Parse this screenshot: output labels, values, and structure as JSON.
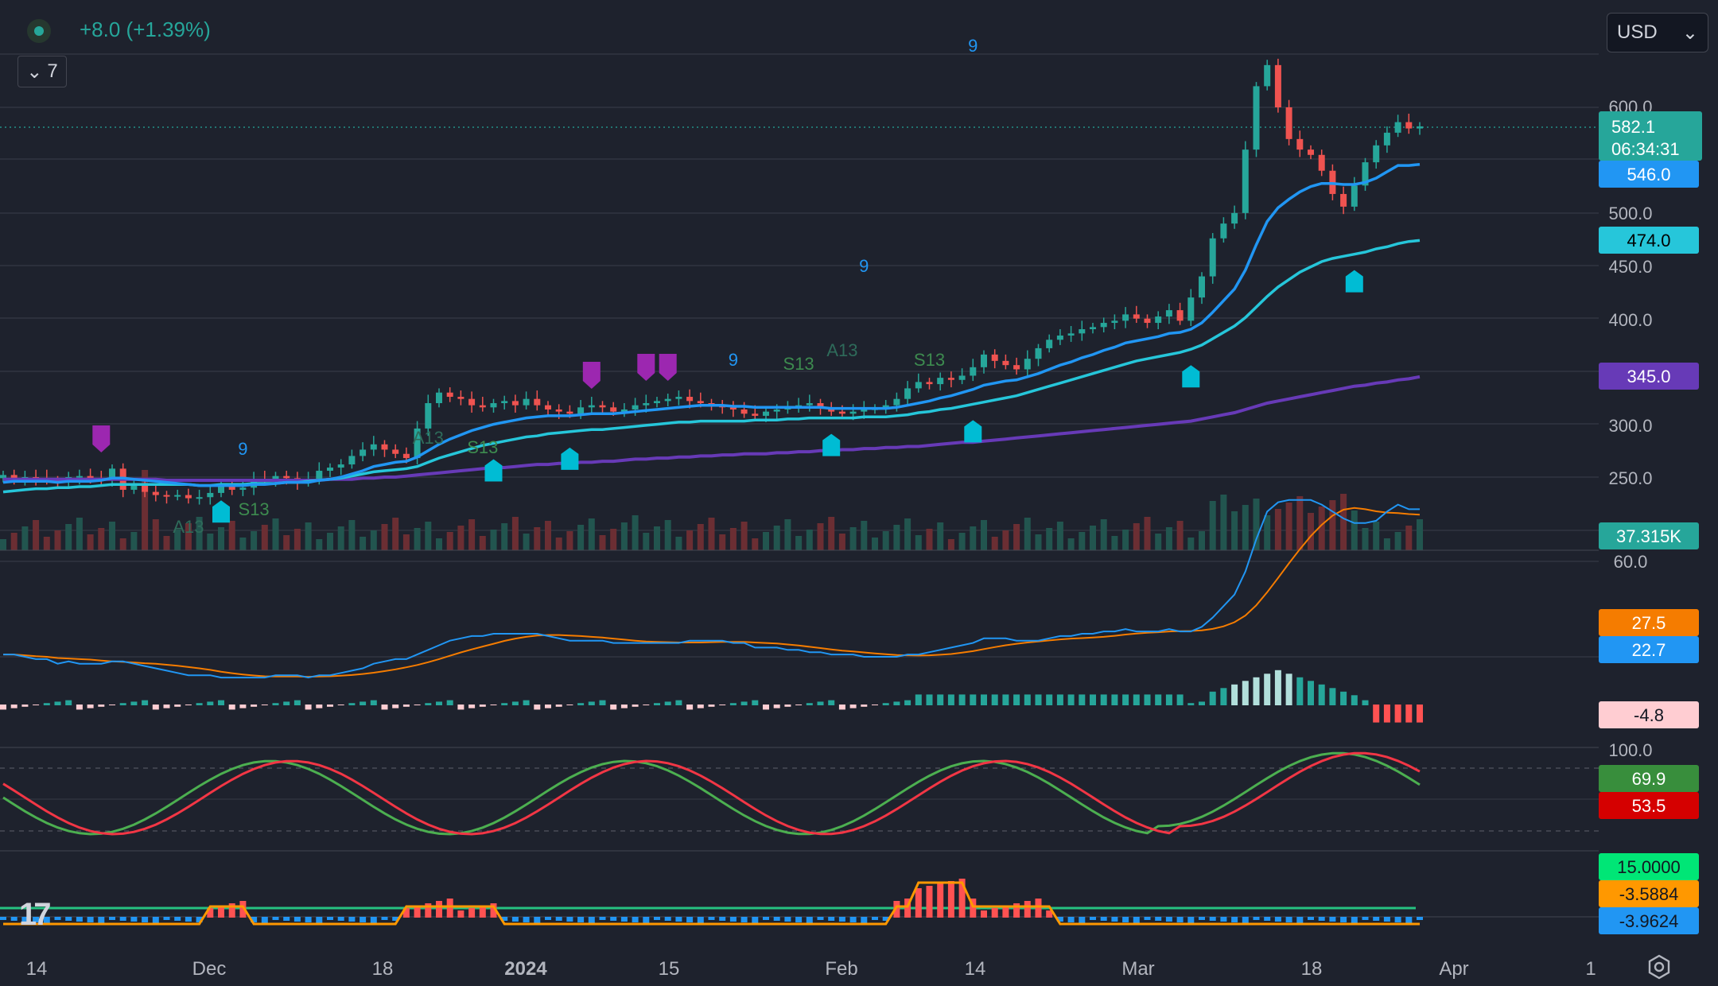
{
  "header": {
    "change": "+8.0 (+1.39%)",
    "legend_toggle": "7",
    "currency": "USD"
  },
  "colors": {
    "background": "#1e222d",
    "up": "#26a69a",
    "down": "#ef5350",
    "ema_fast": "#2196f3",
    "ema_mid": "#26c6da",
    "ema_slow": "#673ab7",
    "macd_signal": "#f57c00",
    "stoch_k": "#4caf50",
    "stoch_d": "#f23645",
    "signal_marker": "#00bcd4",
    "sell_marker": "#9c27b0"
  },
  "chart_data": {
    "type": "candlestick",
    "x_ticks": [
      "14",
      "Dec",
      "18",
      "2024",
      "15",
      "Feb",
      "14",
      "Mar",
      "18",
      "Apr",
      "1"
    ],
    "price_axis_ticks": [
      "600.0",
      "500.0",
      "450.0",
      "400.0",
      "300.0",
      "250.0"
    ],
    "last_price": "582.1",
    "countdown": "06:34:31",
    "candles_close": [
      252,
      248,
      250,
      249,
      247,
      246,
      250,
      251,
      248,
      247,
      258,
      238,
      242,
      236,
      233,
      232,
      233,
      230,
      231,
      235,
      242,
      238,
      240,
      248,
      246,
      251,
      249,
      245,
      248,
      256,
      259,
      262,
      270,
      276,
      281,
      276,
      272,
      268,
      296,
      320,
      330,
      326,
      324,
      318,
      316,
      320,
      322,
      318,
      324,
      318,
      314,
      312,
      310,
      316,
      318,
      316,
      312,
      314,
      318,
      320,
      322,
      324,
      326,
      322,
      320,
      318,
      316,
      314,
      310,
      308,
      312,
      314,
      316,
      318,
      320,
      316,
      312,
      310,
      312,
      314,
      315,
      318,
      324,
      334,
      340,
      338,
      344,
      342,
      346,
      354,
      366,
      360,
      356,
      352,
      362,
      372,
      380,
      384,
      386,
      390,
      392,
      396,
      398,
      404,
      400,
      396,
      402,
      408,
      398,
      420,
      440,
      476,
      490,
      500,
      560,
      620,
      640,
      600,
      570,
      560,
      555,
      540,
      518,
      506,
      526,
      548,
      564,
      576,
      586,
      580,
      582
    ],
    "ema_fast": [
      245,
      246,
      246,
      246,
      246,
      245,
      246,
      246,
      246,
      247,
      249,
      249,
      248,
      247,
      246,
      245,
      244,
      243,
      242,
      242,
      242,
      242,
      242,
      243,
      243,
      244,
      245,
      245,
      245,
      247,
      248,
      250,
      253,
      256,
      260,
      262,
      264,
      265,
      269,
      275,
      281,
      286,
      290,
      294,
      297,
      300,
      302,
      304,
      306,
      307,
      308,
      308,
      308,
      309,
      310,
      310,
      310,
      311,
      312,
      313,
      314,
      315,
      316,
      317,
      318,
      318,
      318,
      317,
      317,
      316,
      316,
      316,
      316,
      316,
      316,
      316,
      315,
      315,
      315,
      315,
      315,
      315,
      316,
      318,
      320,
      322,
      325,
      327,
      330,
      333,
      337,
      339,
      341,
      342,
      345,
      348,
      352,
      356,
      359,
      363,
      366,
      370,
      373,
      377,
      379,
      381,
      383,
      386,
      387,
      390,
      396,
      406,
      417,
      428,
      446,
      470,
      492,
      505,
      513,
      520,
      525,
      528,
      528,
      527,
      527,
      529,
      533,
      539,
      545,
      545,
      546
    ],
    "ema_mid": [
      236,
      237,
      238,
      239,
      239,
      240,
      240,
      241,
      241,
      242,
      243,
      243,
      243,
      243,
      243,
      243,
      243,
      243,
      242,
      242,
      243,
      243,
      243,
      244,
      244,
      244,
      245,
      245,
      246,
      247,
      248,
      249,
      251,
      253,
      255,
      256,
      257,
      258,
      260,
      264,
      268,
      271,
      274,
      277,
      280,
      282,
      284,
      286,
      288,
      289,
      291,
      292,
      293,
      294,
      295,
      295,
      296,
      297,
      298,
      299,
      300,
      301,
      302,
      302,
      303,
      303,
      303,
      303,
      303,
      304,
      304,
      304,
      305,
      305,
      306,
      306,
      306,
      306,
      306,
      307,
      307,
      307,
      308,
      309,
      311,
      312,
      314,
      315,
      317,
      319,
      321,
      323,
      325,
      327,
      330,
      333,
      336,
      339,
      342,
      345,
      348,
      351,
      354,
      357,
      360,
      362,
      364,
      366,
      368,
      371,
      375,
      381,
      387,
      393,
      401,
      411,
      421,
      430,
      437,
      444,
      449,
      454,
      457,
      459,
      461,
      463,
      466,
      468,
      471,
      473,
      474
    ],
    "ema_slow": [
      248,
      248,
      248,
      248,
      248,
      248,
      248,
      248,
      248,
      248,
      248,
      248,
      248,
      248,
      248,
      247,
      247,
      247,
      247,
      247,
      247,
      247,
      247,
      247,
      247,
      247,
      247,
      247,
      247,
      247,
      248,
      248,
      248,
      249,
      249,
      250,
      250,
      251,
      252,
      253,
      254,
      255,
      256,
      257,
      258,
      259,
      259,
      260,
      261,
      262,
      262,
      263,
      263,
      264,
      264,
      265,
      265,
      266,
      267,
      267,
      268,
      268,
      269,
      269,
      270,
      270,
      271,
      271,
      272,
      272,
      272,
      273,
      273,
      274,
      274,
      275,
      275,
      276,
      276,
      277,
      277,
      278,
      278,
      279,
      279,
      280,
      281,
      282,
      283,
      283,
      284,
      285,
      286,
      287,
      288,
      289,
      290,
      291,
      292,
      293,
      294,
      295,
      296,
      297,
      298,
      299,
      300,
      301,
      302,
      303,
      305,
      307,
      309,
      311,
      314,
      317,
      320,
      322,
      324,
      326,
      328,
      330,
      332,
      334,
      336,
      337,
      339,
      340,
      342,
      343,
      345
    ],
    "volume_last": "37.315K",
    "macd": {
      "ylim_top": "60.0",
      "macd_value": "22.7",
      "signal_value": "27.5",
      "hist_value": "-4.8"
    },
    "stochastic": {
      "top_tick": "100.0",
      "k_value": "69.9",
      "d_value": "53.5"
    },
    "oscillator": {
      "upper": "15.0000",
      "value1": "-3.5884",
      "value2": "-3.9624"
    },
    "markers": {
      "nine_labels": [
        "9",
        "9",
        "9",
        "9"
      ],
      "a13": [
        "A13",
        "A13",
        "A13"
      ],
      "s13": [
        "S13",
        "S13",
        "S13",
        "S13"
      ]
    }
  }
}
